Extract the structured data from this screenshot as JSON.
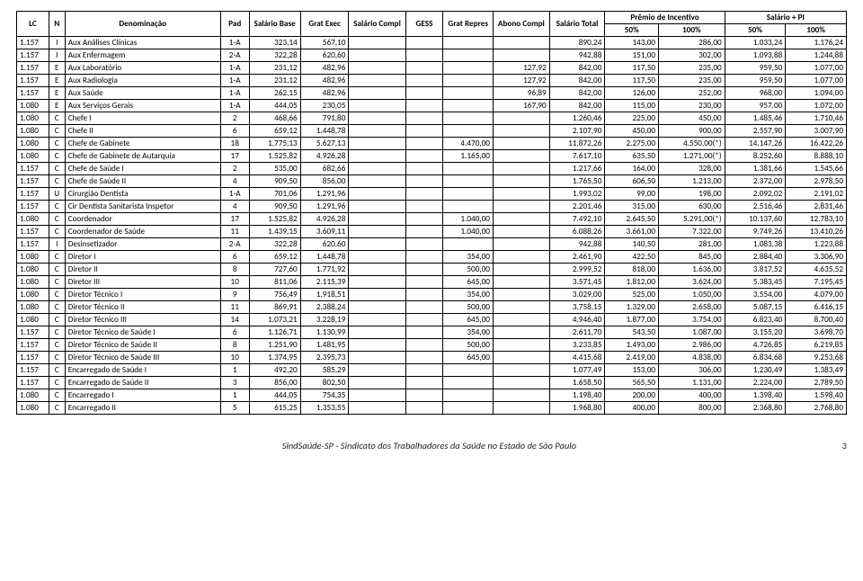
{
  "header": {
    "lc": "LC",
    "n": "N",
    "denom": "Denominação",
    "pad": "Pad",
    "salBase": "Salário Base",
    "gratExec": "Grat Exec",
    "salCompl": "Salário Compl",
    "gess": "GESS",
    "gratRepres": "Grat Repres",
    "abonoCompl": "Abono Compl",
    "salTotal": "Salário Total",
    "premio": "Prêmio de Incentivo",
    "salPI": "Salário + PI",
    "p50": "50%",
    "p100": "100%"
  },
  "rows": [
    {
      "lc": "1.157",
      "n": "I",
      "d": "Aux Análises Clínicas",
      "pad": "1-A",
      "sb": "323,14",
      "ge": "567,10",
      "sc": "",
      "gs": "",
      "gr": "",
      "ac": "",
      "st": "890,24",
      "p50": "143,00",
      "p100": "286,00",
      "s50": "1.033,24",
      "s100": "1.176,24"
    },
    {
      "lc": "1.157",
      "n": "I",
      "d": "Aux Enfermagem",
      "pad": "2-A",
      "sb": "322,28",
      "ge": "620,60",
      "sc": "",
      "gs": "",
      "gr": "",
      "ac": "",
      "st": "942,88",
      "p50": "151,00",
      "p100": "302,00",
      "s50": "1.093,88",
      "s100": "1.244,88"
    },
    {
      "lc": "1.157",
      "n": "E",
      "d": "Aux Laboratório",
      "pad": "1-A",
      "sb": "231,12",
      "ge": "482,96",
      "sc": "",
      "gs": "",
      "gr": "",
      "ac": "127,92",
      "st": "842,00",
      "p50": "117,50",
      "p100": "235,00",
      "s50": "959,50",
      "s100": "1.077,00"
    },
    {
      "lc": "1.157",
      "n": "E",
      "d": "Aux Radiologia",
      "pad": "1-A",
      "sb": "231,12",
      "ge": "482,96",
      "sc": "",
      "gs": "",
      "gr": "",
      "ac": "127,92",
      "st": "842,00",
      "p50": "117,50",
      "p100": "235,00",
      "s50": "959,50",
      "s100": "1.077,00"
    },
    {
      "lc": "1.157",
      "n": "E",
      "d": "Aux Saúde",
      "pad": "1-A",
      "sb": "262,15",
      "ge": "482,96",
      "sc": "",
      "gs": "",
      "gr": "",
      "ac": "96,89",
      "st": "842,00",
      "p50": "126,00",
      "p100": "252,00",
      "s50": "968,00",
      "s100": "1.094,00"
    },
    {
      "lc": "1.080",
      "n": "E",
      "d": "Aux Serviços Gerais",
      "pad": "1-A",
      "sb": "444,05",
      "ge": "230,05",
      "sc": "",
      "gs": "",
      "gr": "",
      "ac": "167,90",
      "st": "842,00",
      "p50": "115,00",
      "p100": "230,00",
      "s50": "957,00",
      "s100": "1.072,00"
    },
    {
      "lc": "1.080",
      "n": "C",
      "d": "Chefe I",
      "pad": "2",
      "sb": "468,66",
      "ge": "791,80",
      "sc": "",
      "gs": "",
      "gr": "",
      "ac": "",
      "st": "1.260,46",
      "p50": "225,00",
      "p100": "450,00",
      "s50": "1.485,46",
      "s100": "1.710,46"
    },
    {
      "lc": "1.080",
      "n": "C",
      "d": "Chefe II",
      "pad": "6",
      "sb": "659,12",
      "ge": "1.448,78",
      "sc": "",
      "gs": "",
      "gr": "",
      "ac": "",
      "st": "2.107,90",
      "p50": "450,00",
      "p100": "900,00",
      "s50": "2.557,90",
      "s100": "3.007,90"
    },
    {
      "lc": "1.080",
      "n": "C",
      "d": "Chefe de Gabinete",
      "pad": "18",
      "sb": "1.775,13",
      "ge": "5.627,13",
      "sc": "",
      "gs": "",
      "gr": "4.470,00",
      "ac": "",
      "st": "11.872,26",
      "p50": "2.275,00",
      "p100": "4.550,00(*)",
      "s50": "14.147,26",
      "s100": "16.422,26"
    },
    {
      "lc": "1.080",
      "n": "C",
      "d": "Chefe de Gabinete de Autarquia",
      "pad": "17",
      "sb": "1.525,82",
      "ge": "4.926,28",
      "sc": "",
      "gs": "",
      "gr": "1.165,00",
      "ac": "",
      "st": "7.617,10",
      "p50": "635,50",
      "p100": "1.271,00(*)",
      "s50": "8.252,60",
      "s100": "8.888,10"
    },
    {
      "lc": "1.157",
      "n": "C",
      "d": "Chefe de Saúde I",
      "pad": "2",
      "sb": "535,00",
      "ge": "682,66",
      "sc": "",
      "gs": "",
      "gr": "",
      "ac": "",
      "st": "1.217,66",
      "p50": "164,00",
      "p100": "328,00",
      "s50": "1.381,66",
      "s100": "1.545,66"
    },
    {
      "lc": "1.157",
      "n": "C",
      "d": "Chefe de Saúde II",
      "pad": "4",
      "sb": "909,50",
      "ge": "856,00",
      "sc": "",
      "gs": "",
      "gr": "",
      "ac": "",
      "st": "1.765,50",
      "p50": "606,50",
      "p100": "1.213,00",
      "s50": "2.372,00",
      "s100": "2.978,50"
    },
    {
      "lc": "1.157",
      "n": "U",
      "d": "Cirurgião Dentista",
      "pad": "1-A",
      "sb": "701,06",
      "ge": "1.291,96",
      "sc": "",
      "gs": "",
      "gr": "",
      "ac": "",
      "st": "1.993,02",
      "p50": "99,00",
      "p100": "198,00",
      "s50": "2.092,02",
      "s100": "2.191,02"
    },
    {
      "lc": "1.157",
      "n": "C",
      "d": "Cir Dentista Sanitarista Inspetor",
      "pad": "4",
      "sb": "909,50",
      "ge": "1.291,96",
      "sc": "",
      "gs": "",
      "gr": "",
      "ac": "",
      "st": "2.201,46",
      "p50": "315,00",
      "p100": "630,00",
      "s50": "2.516,46",
      "s100": "2.831,46"
    },
    {
      "lc": "1.080",
      "n": "C",
      "d": "Coordenador",
      "pad": "17",
      "sb": "1.525,82",
      "ge": "4.926,28",
      "sc": "",
      "gs": "",
      "gr": "1.040,00",
      "ac": "",
      "st": "7.492,10",
      "p50": "2.645,50",
      "p100": "5.291,00(*)",
      "s50": "10.137,60",
      "s100": "12.783,10"
    },
    {
      "lc": "1.157",
      "n": "C",
      "d": "Coordenador de Saúde",
      "pad": "11",
      "sb": "1.439,15",
      "ge": "3.609,11",
      "sc": "",
      "gs": "",
      "gr": "1.040,00",
      "ac": "",
      "st": "6.088,26",
      "p50": "3.661,00",
      "p100": "7.322,00",
      "s50": "9.749,26",
      "s100": "13.410,26"
    },
    {
      "lc": "1.157",
      "n": "I",
      "d": "Desinsetizador",
      "pad": "2-A",
      "sb": "322,28",
      "ge": "620,60",
      "sc": "",
      "gs": "",
      "gr": "",
      "ac": "",
      "st": "942,88",
      "p50": "140,50",
      "p100": "281,00",
      "s50": "1.083,38",
      "s100": "1.223,88"
    },
    {
      "lc": "1.080",
      "n": "C",
      "d": "Diretor I",
      "pad": "6",
      "sb": "659,12",
      "ge": "1.448,78",
      "sc": "",
      "gs": "",
      "gr": "354,00",
      "ac": "",
      "st": "2.461,90",
      "p50": "422,50",
      "p100": "845,00",
      "s50": "2.884,40",
      "s100": "3.306,90"
    },
    {
      "lc": "1.080",
      "n": "C",
      "d": "Diretor II",
      "pad": "8",
      "sb": "727,60",
      "ge": "1.771,92",
      "sc": "",
      "gs": "",
      "gr": "500,00",
      "ac": "",
      "st": "2.999,52",
      "p50": "818,00",
      "p100": "1.636,00",
      "s50": "3.817,52",
      "s100": "4.635,52"
    },
    {
      "lc": "1.080",
      "n": "C",
      "d": "Diretor III",
      "pad": "10",
      "sb": "811,06",
      "ge": "2.115,39",
      "sc": "",
      "gs": "",
      "gr": "645,00",
      "ac": "",
      "st": "3.571,45",
      "p50": "1.812,00",
      "p100": "3.624,00",
      "s50": "5.383,45",
      "s100": "7.195,45"
    },
    {
      "lc": "1.080",
      "n": "C",
      "d": "Diretor Técnico I",
      "pad": "9",
      "sb": "756,49",
      "ge": "1.918,51",
      "sc": "",
      "gs": "",
      "gr": "354,00",
      "ac": "",
      "st": "3.029,00",
      "p50": "525,00",
      "p100": "1.050,00",
      "s50": "3.554,00",
      "s100": "4.079,00"
    },
    {
      "lc": "1.080",
      "n": "C",
      "d": "Diretor Técnico II",
      "pad": "11",
      "sb": "869,91",
      "ge": "2.388,24",
      "sc": "",
      "gs": "",
      "gr": "500,00",
      "ac": "",
      "st": "3.758,15",
      "p50": "1.329,00",
      "p100": "2.658,00",
      "s50": "5.087,15",
      "s100": "6.416,15"
    },
    {
      "lc": "1.080",
      "n": "C",
      "d": "Diretor Técnico III",
      "pad": "14",
      "sb": "1.073,21",
      "ge": "3.228,19",
      "sc": "",
      "gs": "",
      "gr": "645,00",
      "ac": "",
      "st": "4.946,40",
      "p50": "1.877,00",
      "p100": "3.754,00",
      "s50": "6.823,40",
      "s100": "8.700,40"
    },
    {
      "lc": "1.157",
      "n": "C",
      "d": "Diretor Técnico de Saúde I",
      "pad": "6",
      "sb": "1.126,71",
      "ge": "1.130,99",
      "sc": "",
      "gs": "",
      "gr": "354,00",
      "ac": "",
      "st": "2.611,70",
      "p50": "543,50",
      "p100": "1.087,00",
      "s50": "3.155,20",
      "s100": "3.698,70"
    },
    {
      "lc": "1.157",
      "n": "C",
      "d": "Diretor Técnico de Saúde II",
      "pad": "8",
      "sb": "1.251,90",
      "ge": "1.481,95",
      "sc": "",
      "gs": "",
      "gr": "500,00",
      "ac": "",
      "st": "3.233,85",
      "p50": "1.493,00",
      "p100": "2.986,00",
      "s50": "4.726,85",
      "s100": "6.219,85"
    },
    {
      "lc": "1.157",
      "n": "C",
      "d": "Diretor Técnico de Saúde III",
      "pad": "10",
      "sb": "1.374,95",
      "ge": "2.395,73",
      "sc": "",
      "gs": "",
      "gr": "645,00",
      "ac": "",
      "st": "4.415,68",
      "p50": "2.419,00",
      "p100": "4.838,00",
      "s50": "6.834,68",
      "s100": "9.253,68"
    },
    {
      "lc": "1.157",
      "n": "C",
      "d": "Encarregado de Saúde I",
      "pad": "1",
      "sb": "492,20",
      "ge": "585,29",
      "sc": "",
      "gs": "",
      "gr": "",
      "ac": "",
      "st": "1.077,49",
      "p50": "153,00",
      "p100": "306,00",
      "s50": "1.230,49",
      "s100": "1.383,49"
    },
    {
      "lc": "1.157",
      "n": "C",
      "d": "Encarregado de Saúde II",
      "pad": "3",
      "sb": "856,00",
      "ge": "802,50",
      "sc": "",
      "gs": "",
      "gr": "",
      "ac": "",
      "st": "1.658,50",
      "p50": "565,50",
      "p100": "1.131,00",
      "s50": "2.224,00",
      "s100": "2.789,50"
    },
    {
      "lc": "1.080",
      "n": "C",
      "d": "Encarregado I",
      "pad": "1",
      "sb": "444,05",
      "ge": "754,35",
      "sc": "",
      "gs": "",
      "gr": "",
      "ac": "",
      "st": "1.198,40",
      "p50": "200,00",
      "p100": "400,00",
      "s50": "1.398,40",
      "s100": "1.598,40"
    },
    {
      "lc": "1.080",
      "n": "C",
      "d": "Encarregado II",
      "pad": "5",
      "sb": "615,25",
      "ge": "1.353,55",
      "sc": "",
      "gs": "",
      "gr": "",
      "ac": "",
      "st": "1.968,80",
      "p50": "400,00",
      "p100": "800,00",
      "s50": "2.368,80",
      "s100": "2.768,80"
    }
  ],
  "footer": {
    "text": "SindSaúde-SP  -  Sindicato dos Trabalhadores da Saúde no Estado de São Paulo",
    "page": "3"
  },
  "colWidths": {
    "lc": "3.6%",
    "n": "1.8%",
    "d": "17.4%",
    "pad": "3.2%",
    "sb": "5.4%",
    "ge": "5.4%",
    "sc": "5%",
    "gs": "4.2%",
    "gr": "5.4%",
    "ac": "5.4%",
    "st": "6.2%",
    "p50": "6%",
    "p100": "7.4%",
    "s50": "6.8%",
    "s100": "6.8%"
  }
}
